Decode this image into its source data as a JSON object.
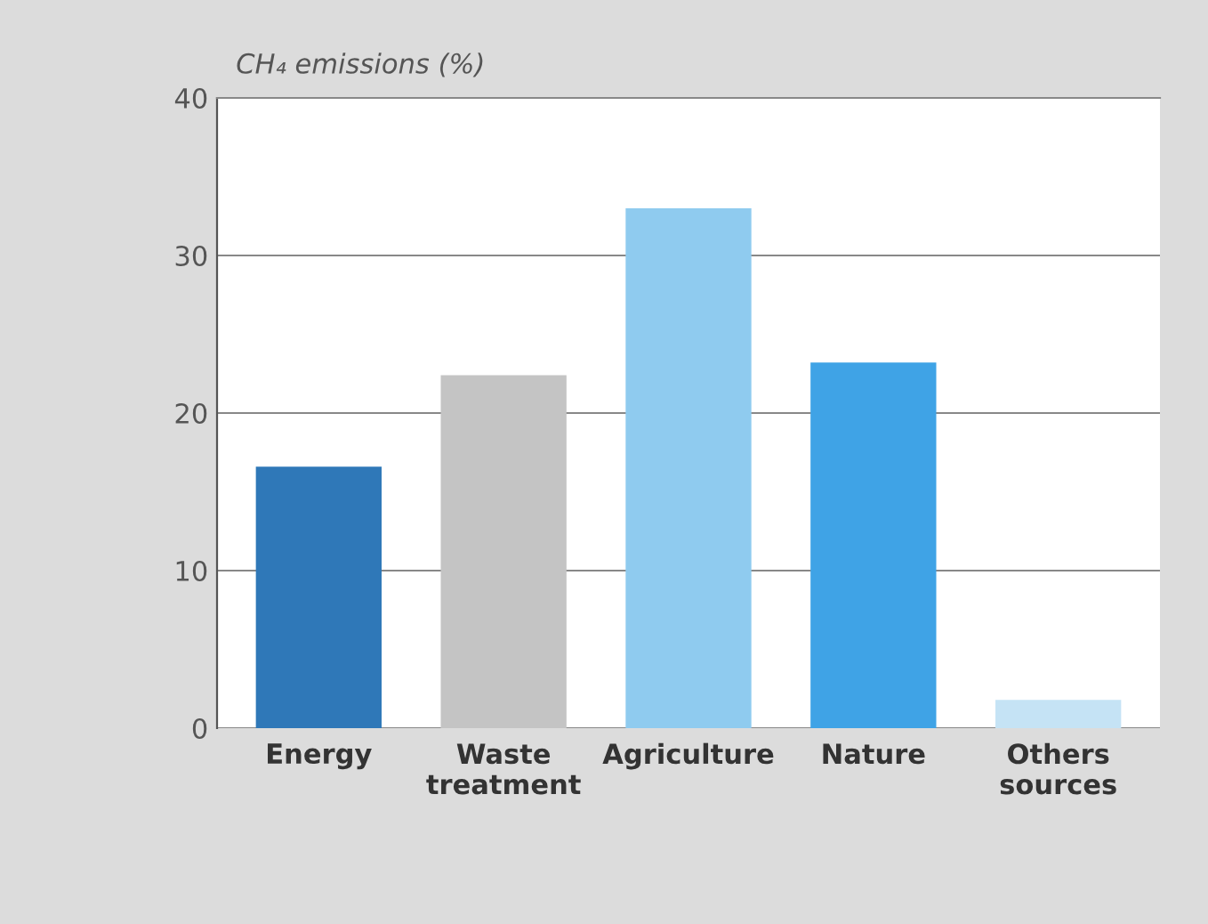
{
  "chart_data": {
    "type": "bar",
    "ylabel": "CH₄ emissions (%)",
    "categories": [
      "Energy",
      "Waste\ntreatment",
      "Agriculture",
      "Nature",
      "Others\nsources"
    ],
    "values": [
      16.6,
      22.4,
      33.0,
      23.2,
      1.8
    ],
    "colors": [
      "#2f78b8",
      "#c4c4c4",
      "#8fcbef",
      "#3fa3e6",
      "#c5e3f5"
    ],
    "ylim": [
      0,
      40
    ],
    "yticks": [
      0,
      10,
      20,
      30,
      40
    ],
    "grid": "y"
  }
}
